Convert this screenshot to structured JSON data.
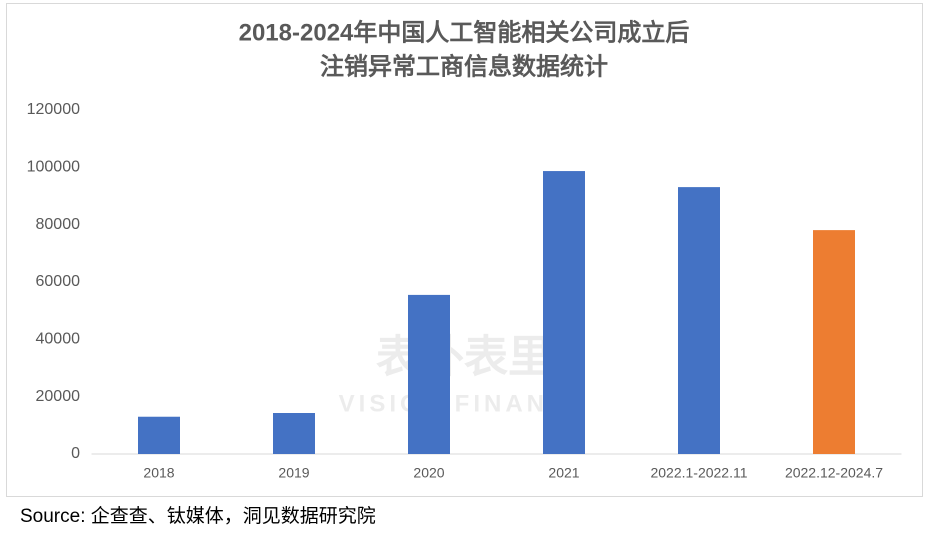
{
  "chart_data": {
    "type": "bar",
    "title": [
      "2018-2024年中国人工智能相关公司成立后",
      "注销异常工商信息数据统计"
    ],
    "categories": [
      "2018",
      "2019",
      "2020",
      "2021",
      "2022.1-2022.11",
      "2022.12-2024.7"
    ],
    "values": [
      13000,
      14300,
      55500,
      98700,
      93100,
      78100
    ],
    "colors": [
      "#4472c4",
      "#4472c4",
      "#4472c4",
      "#4472c4",
      "#4472c4",
      "#ed7d31"
    ],
    "ylim": [
      0,
      120000
    ],
    "yticks": [
      0,
      20000,
      40000,
      60000,
      80000,
      100000,
      120000
    ],
    "grid": false,
    "watermark": [
      "表外表里",
      "VISION FINANCE"
    ],
    "source": "Source: 企查查、钛媒体，洞见数据研究院"
  }
}
